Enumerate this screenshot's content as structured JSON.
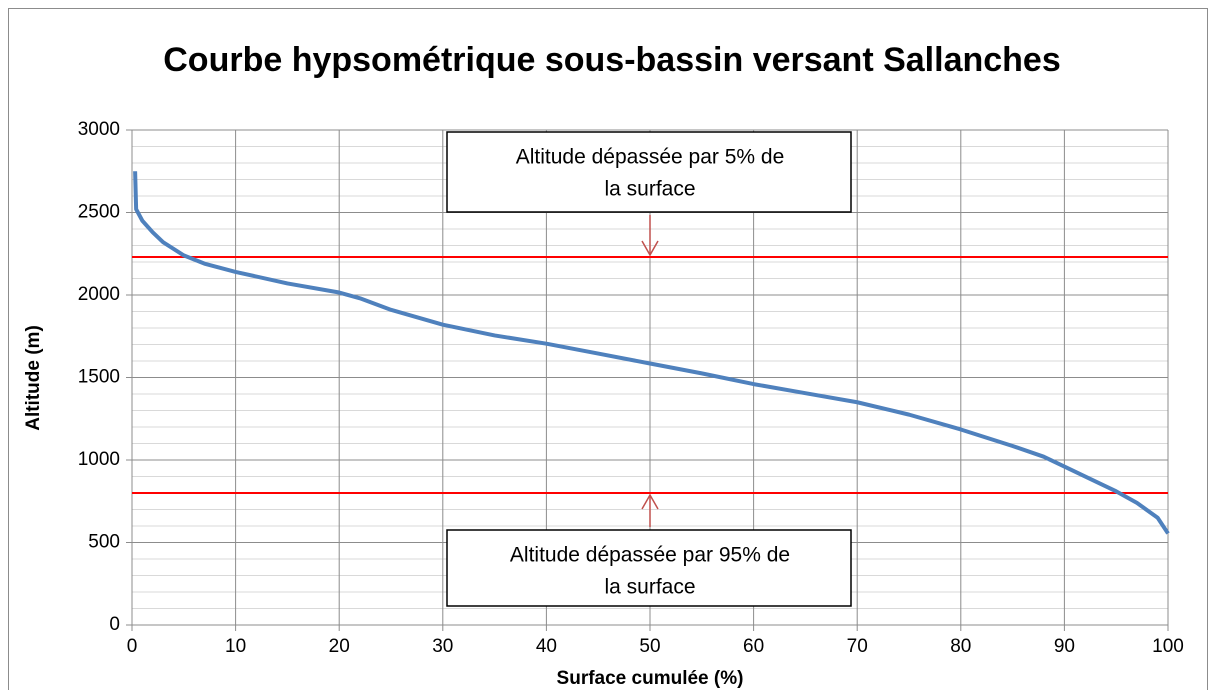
{
  "chart_data": {
    "type": "line",
    "title": "Courbe hypsométrique sous-bassin versant Sallanches",
    "xlabel": "Surface cumulée (%)",
    "ylabel": "Altitude (m)",
    "x": [
      0.3,
      0.4,
      1,
      2,
      3,
      5,
      7,
      10,
      15,
      20,
      22,
      25,
      30,
      35,
      40,
      45,
      50,
      55,
      60,
      65,
      70,
      75,
      80,
      85,
      88,
      90,
      93,
      95,
      97,
      99,
      100
    ],
    "series": [
      {
        "name": "Altitude",
        "color": "#4f81bd",
        "values": [
          2750,
          2520,
          2450,
          2380,
          2320,
          2240,
          2190,
          2140,
          2070,
          2015,
          1980,
          1910,
          1820,
          1755,
          1705,
          1645,
          1585,
          1525,
          1460,
          1405,
          1350,
          1275,
          1185,
          1085,
          1020,
          960,
          870,
          810,
          740,
          650,
          555
        ]
      }
    ],
    "xlim": [
      0,
      100
    ],
    "xticks": [
      0,
      10,
      20,
      30,
      40,
      50,
      60,
      70,
      80,
      90,
      100
    ],
    "ylim": [
      0,
      3000
    ],
    "yticks": [
      0,
      500,
      1000,
      1500,
      2000,
      2500,
      3000
    ],
    "minor_yticks": [
      100,
      200,
      300,
      400,
      600,
      700,
      800,
      900,
      1100,
      1200,
      1300,
      1400,
      1600,
      1700,
      1800,
      1900,
      2100,
      2200,
      2300,
      2400,
      2600,
      2700,
      2800,
      2900
    ],
    "grid": true,
    "reference_lines": [
      {
        "value": 2230,
        "color": "#ff0000",
        "annotation": [
          "Altitude dépassée par 5% de",
          "la surface"
        ]
      },
      {
        "value": 800,
        "color": "#ff0000",
        "annotation": [
          "Altitude dépassée par 95% de",
          "la surface"
        ]
      }
    ]
  }
}
